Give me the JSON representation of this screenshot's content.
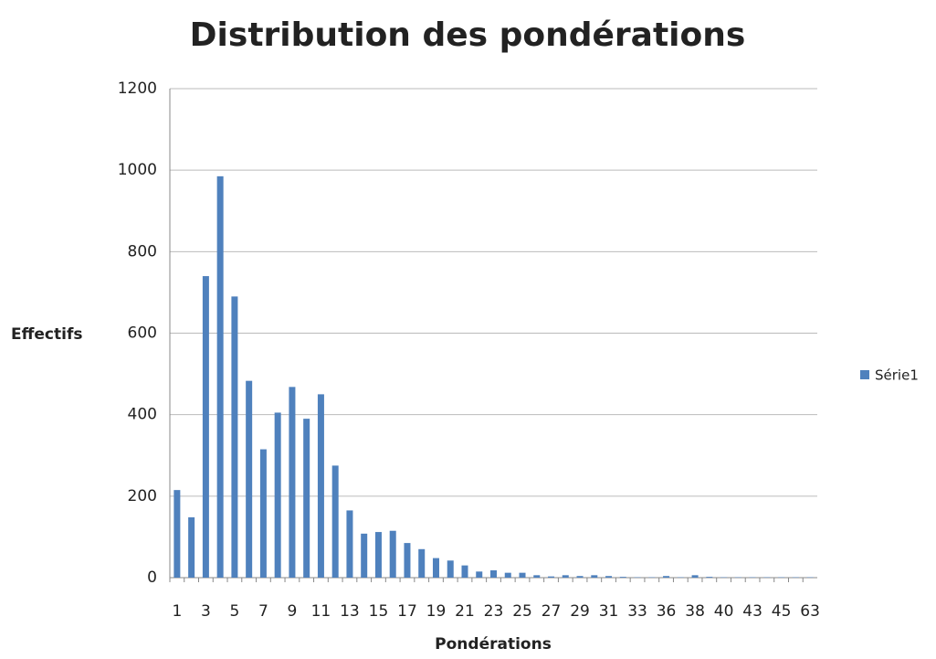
{
  "chart_data": {
    "type": "bar",
    "title": "Distribution des pondérations",
    "x_label": "Pondérations",
    "y_label": "Effectifs",
    "categories": [
      "1",
      null,
      "3",
      null,
      "5",
      null,
      "7",
      null,
      "9",
      null,
      "11",
      null,
      "13",
      null,
      "15",
      null,
      "17",
      null,
      "19",
      null,
      "21",
      null,
      "23",
      null,
      "25",
      null,
      "27",
      null,
      "29",
      null,
      "31",
      null,
      "33",
      null,
      "36",
      null,
      "38",
      null,
      "40",
      null,
      "43",
      null,
      "45",
      null,
      "63"
    ],
    "series": [
      {
        "name": "Série1",
        "color": "#4f81bd",
        "values": [
          215,
          148,
          740,
          985,
          690,
          483,
          315,
          405,
          468,
          390,
          450,
          275,
          165,
          108,
          112,
          115,
          85,
          70,
          48,
          42,
          30,
          15,
          18,
          12,
          12,
          6,
          3,
          6,
          4,
          6,
          4,
          2,
          1,
          1,
          4,
          1,
          6,
          2,
          1,
          1,
          1,
          1,
          1,
          1,
          1
        ]
      }
    ],
    "ylim": [
      0,
      1200
    ],
    "yticks": [
      0,
      200,
      400,
      600,
      800,
      1000,
      1200
    ],
    "grid": true,
    "legend": "right"
  }
}
